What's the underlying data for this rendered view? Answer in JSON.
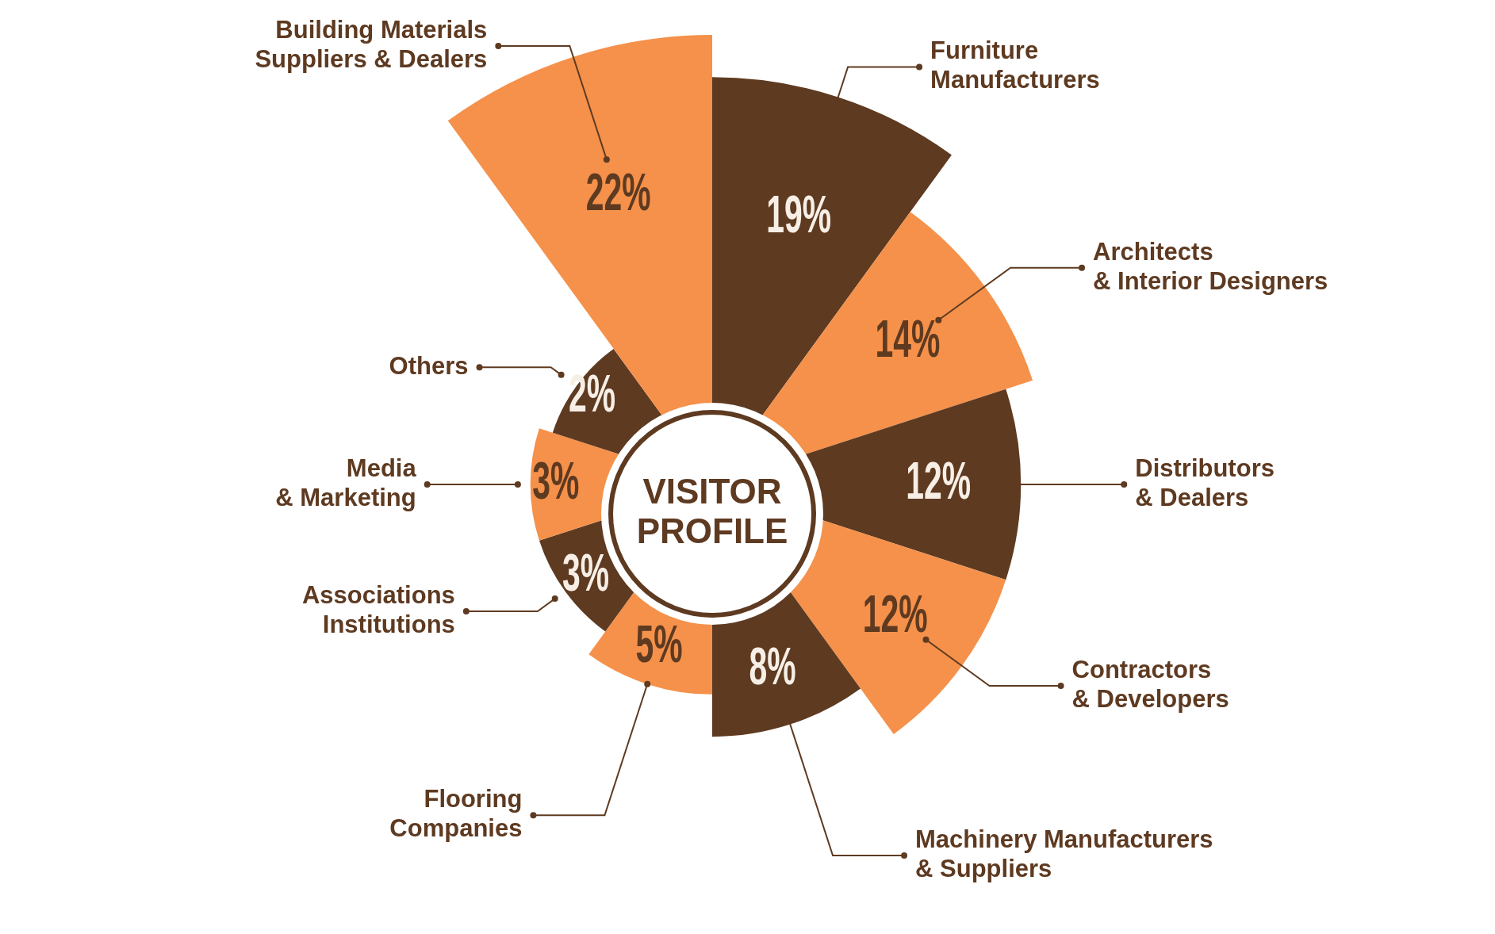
{
  "chart_data": {
    "type": "other",
    "title": "VISITOR PROFILE",
    "categories": [
      "Furniture\nManufacturers",
      "Architects\n& Interior Designers",
      "Distributors\n& Dealers",
      "Contractors\n& Developers",
      "Machinery Manufacturers\n& Suppliers",
      "Flooring\nCompanies",
      "Associations\nInstitutions",
      "Media\n& Marketing",
      "Others",
      "Building Materials\nSuppliers & Dealers"
    ],
    "values": [
      19,
      14,
      12,
      12,
      8,
      5,
      3,
      3,
      2,
      22
    ],
    "value_labels": [
      "19%",
      "14%",
      "12%",
      "12%",
      "8%",
      "5%",
      "3%",
      "3%",
      "2%",
      "22%"
    ],
    "colors": [
      "#5e3a21",
      "#f5914a",
      "#5e3a21",
      "#f5914a",
      "#5e3a21",
      "#f5914a",
      "#5e3a21",
      "#f5914a",
      "#5e3a21",
      "#f5914a"
    ],
    "legend": false
  }
}
